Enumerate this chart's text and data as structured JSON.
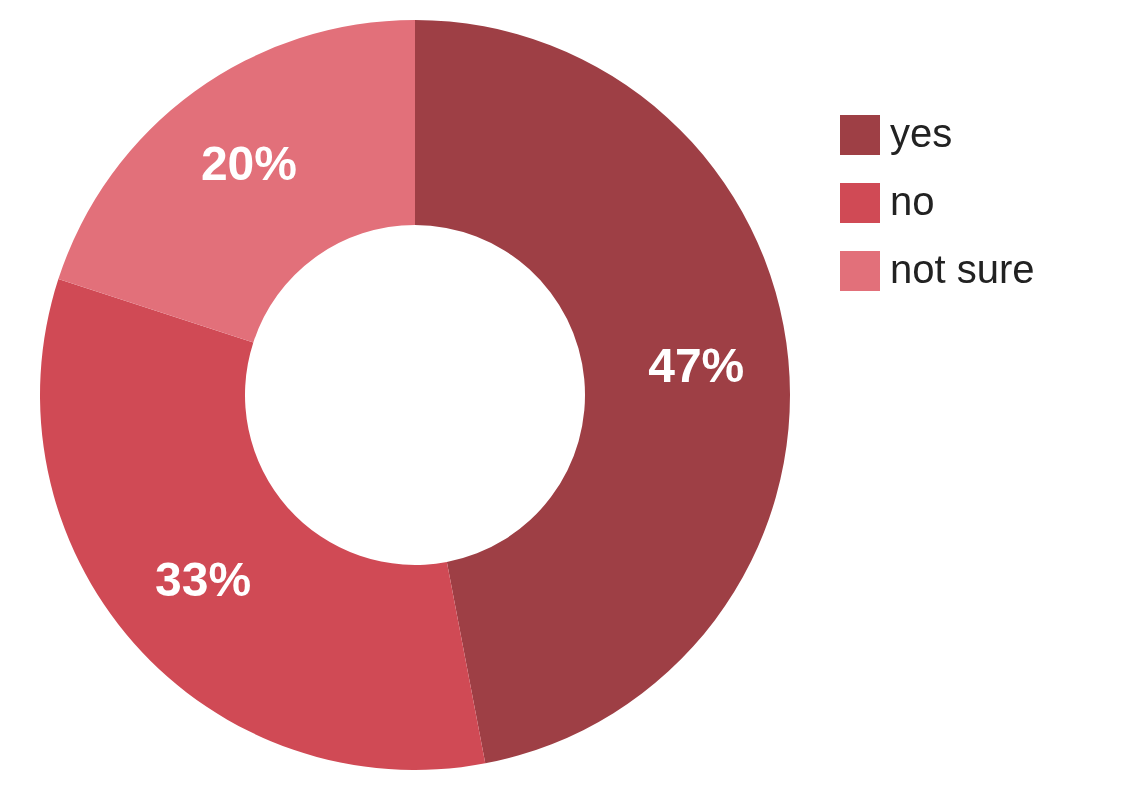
{
  "chart_data": {
    "type": "donut",
    "categories": [
      "yes",
      "no",
      "not sure"
    ],
    "values": [
      47,
      33,
      20
    ],
    "colors": [
      "#9e3f45",
      "#d04a55",
      "#e2707a"
    ],
    "value_labels": [
      "47%",
      "33%",
      "20%"
    ],
    "legend": "top right"
  }
}
